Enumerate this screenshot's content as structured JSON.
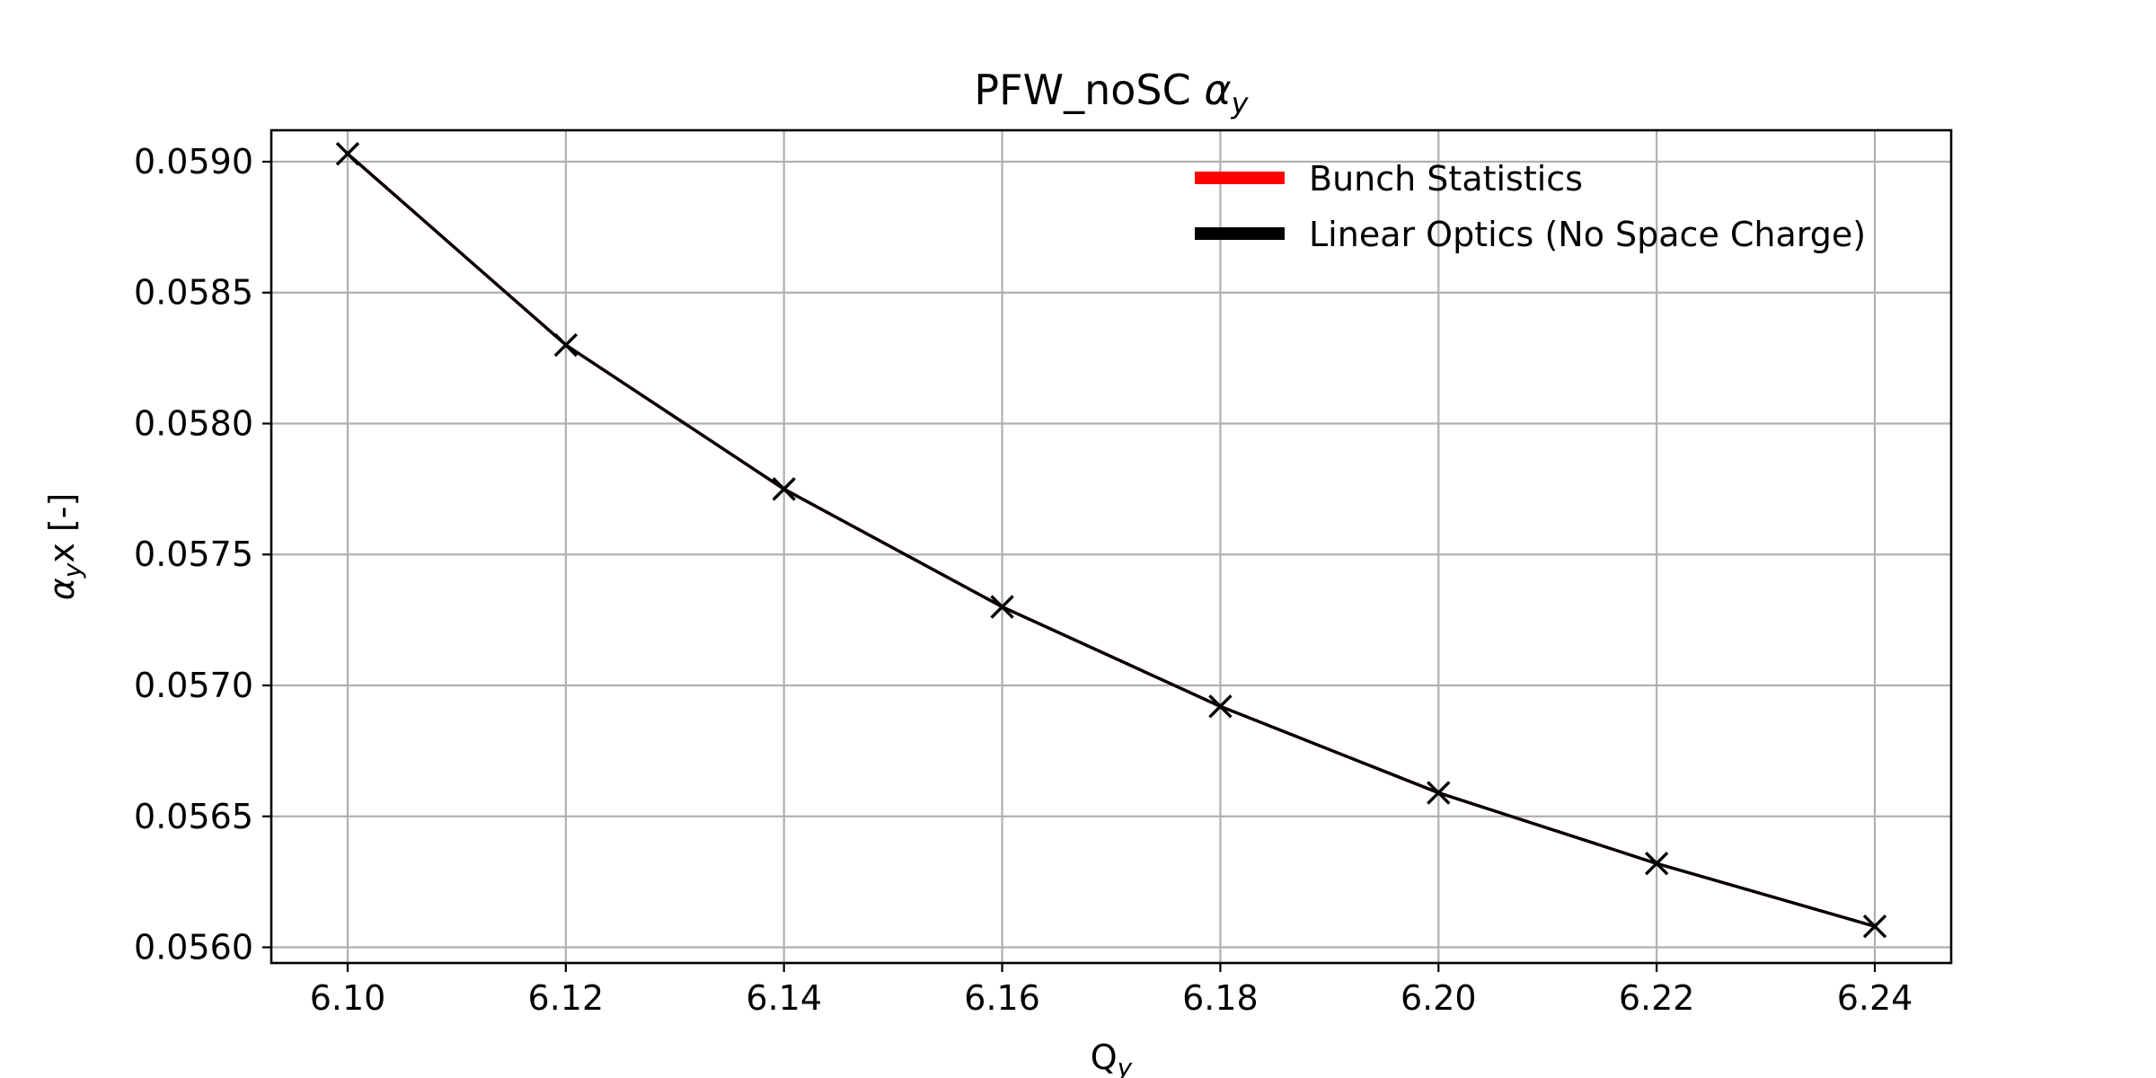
{
  "chart_data": {
    "type": "line",
    "title": "PFW_noSC",
    "title_symbol": "α",
    "title_subscript": "y",
    "xlabel": "Q",
    "xlabel_subscript": "y",
    "ylabel_symbol": "α",
    "ylabel_subscript": "y",
    "ylabel_rest": "x [-]",
    "xlim": [
      6.093,
      6.247
    ],
    "ylim": [
      0.05594,
      0.05912
    ],
    "x_ticks": [
      "6.10",
      "6.12",
      "6.14",
      "6.16",
      "6.18",
      "6.20",
      "6.22",
      "6.24"
    ],
    "y_ticks": [
      "0.0560",
      "0.0565",
      "0.0570",
      "0.0575",
      "0.0580",
      "0.0585",
      "0.0590"
    ],
    "grid": true,
    "legend_position": "top-right",
    "series": [
      {
        "name": "Bunch Statistics",
        "color": "#ff0000",
        "x": [
          6.1,
          6.12,
          6.14,
          6.16,
          6.18,
          6.2,
          6.22,
          6.24
        ],
        "y": [
          0.05903,
          0.0583,
          0.05775,
          0.0573,
          0.05692,
          0.05659,
          0.05632,
          0.05608
        ]
      },
      {
        "name": "Linear Optics (No Space Charge)",
        "color": "#000000",
        "marker": "x",
        "x": [
          6.1,
          6.12,
          6.14,
          6.16,
          6.18,
          6.2,
          6.22,
          6.24
        ],
        "y": [
          0.05903,
          0.0583,
          0.05775,
          0.0573,
          0.05692,
          0.05659,
          0.05632,
          0.05608
        ]
      }
    ]
  }
}
